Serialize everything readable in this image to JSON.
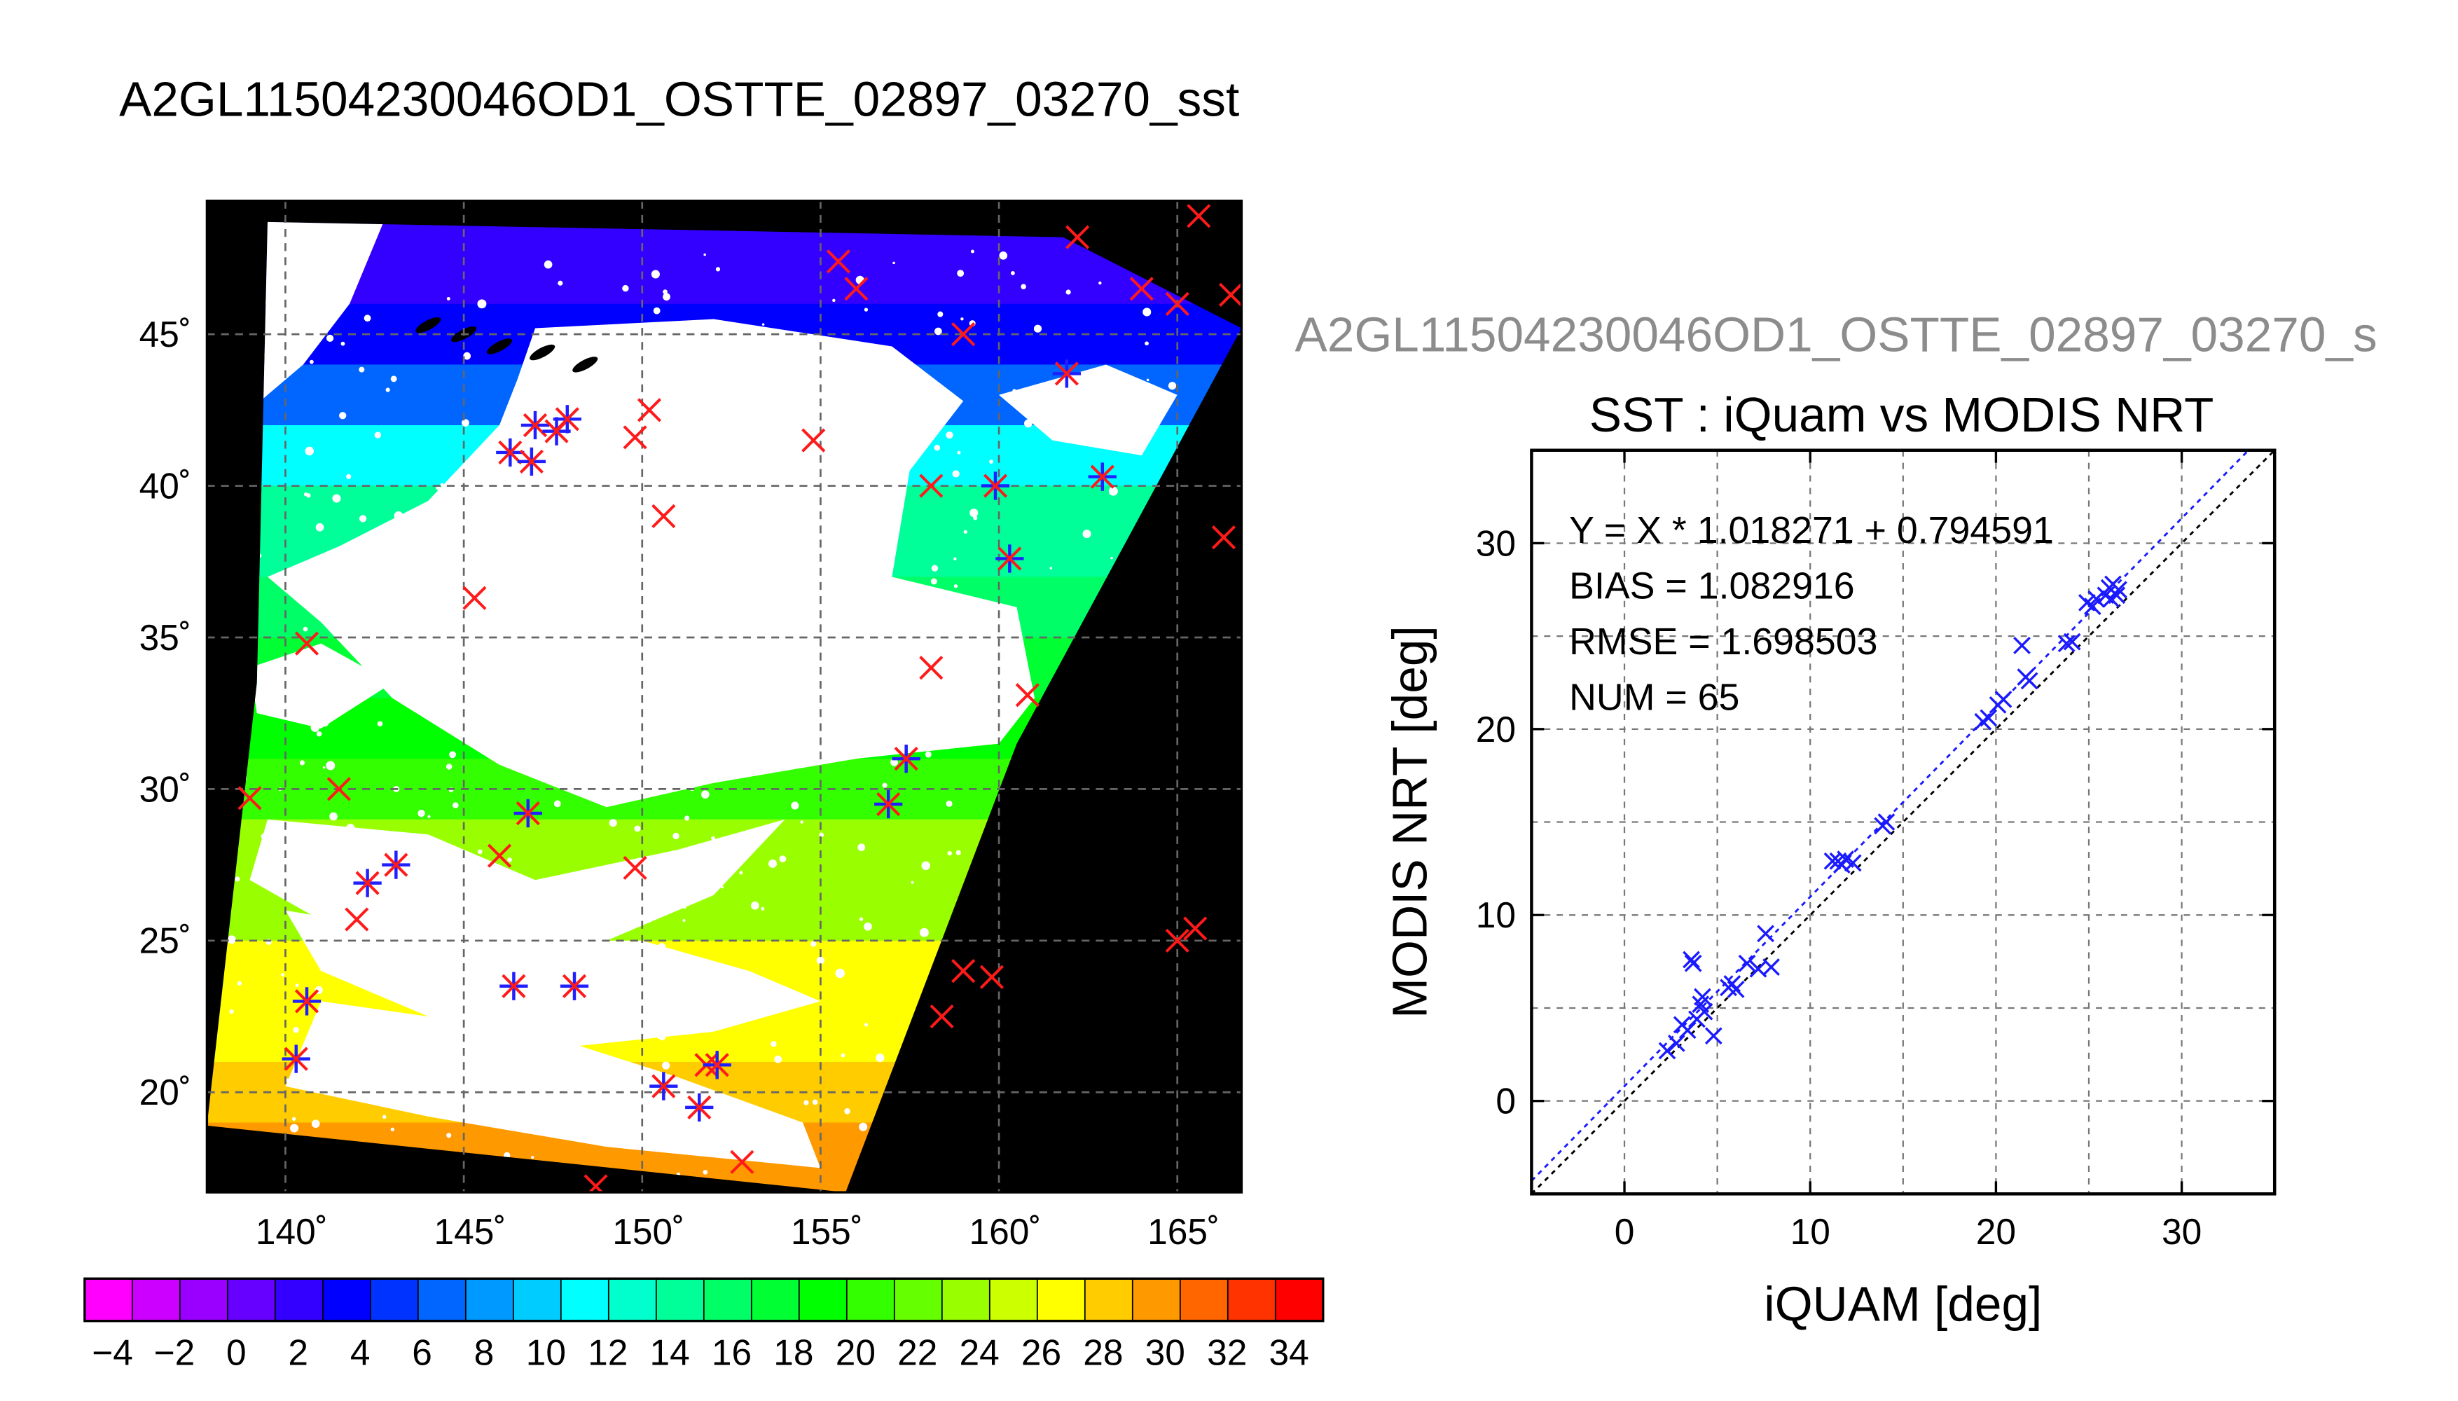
{
  "figure": {
    "map_title": "A2GL11504230046OD1_OSTTE_02897_03270_sst",
    "scatter_header": "A2GL11504230046OD1_OSTTE_02897_03270_s"
  },
  "chart_data": [
    {
      "type": "heatmap",
      "x_ticks": [
        "140˚",
        "145˚",
        "150˚",
        "155˚",
        "160˚",
        "165˚"
      ],
      "x_tick_values": [
        140,
        145,
        150,
        155,
        160,
        165
      ],
      "y_ticks": [
        "20˚",
        "25˚",
        "30˚",
        "35˚",
        "40˚",
        "45˚"
      ],
      "y_tick_values": [
        20,
        25,
        30,
        35,
        40,
        45
      ],
      "xlim": [
        137.8,
        166.8
      ],
      "ylim": [
        16.7,
        49.4
      ],
      "grid": true,
      "colorbar": {
        "ticks": [
          "-4",
          "-2",
          "0",
          "2",
          "4",
          "6",
          "8",
          "10",
          "12",
          "14",
          "16",
          "18",
          "20",
          "22",
          "24",
          "26",
          "28",
          "30",
          "32",
          "34"
        ],
        "range": [
          -5,
          35
        ],
        "colors": [
          "#ff00ff",
          "#cc00ff",
          "#9900ff",
          "#6600ff",
          "#3300ff",
          "#0000ff",
          "#0033ff",
          "#0066ff",
          "#0099ff",
          "#00ccff",
          "#00ffff",
          "#00ffcc",
          "#00ff99",
          "#00ff66",
          "#00ff33",
          "#00ff00",
          "#33ff00",
          "#66ff00",
          "#99ff00",
          "#ccff00",
          "#ffff00",
          "#ffcc00",
          "#ff9900",
          "#ff6600",
          "#ff3300",
          "#ff0000"
        ]
      },
      "buoy_markers": {
        "red_x": [
          [
            139.0,
            29.7
          ],
          [
            141.5,
            30.0
          ],
          [
            140.6,
            34.8
          ],
          [
            142.0,
            25.7
          ],
          [
            145.3,
            36.3
          ],
          [
            146.0,
            27.8
          ],
          [
            149.8,
            27.4
          ],
          [
            149.8,
            41.6
          ],
          [
            150.2,
            42.5
          ],
          [
            150.6,
            39.0
          ],
          [
            154.8,
            41.5
          ],
          [
            155.5,
            47.4
          ],
          [
            156.0,
            46.5
          ],
          [
            158.1,
            40.0
          ],
          [
            158.1,
            34.0
          ],
          [
            159.0,
            45.0
          ],
          [
            159.0,
            24.0
          ],
          [
            158.4,
            22.5
          ],
          [
            159.8,
            23.8
          ],
          [
            160.8,
            33.1
          ],
          [
            162.2,
            48.2
          ],
          [
            164.0,
            46.5
          ],
          [
            165.0,
            46.0
          ],
          [
            165.6,
            48.9
          ],
          [
            166.5,
            46.3
          ],
          [
            166.3,
            38.3
          ],
          [
            165.0,
            25.0
          ],
          [
            165.5,
            25.4
          ],
          [
            148.7,
            16.9
          ],
          [
            152.8,
            17.7
          ],
          [
            151.8,
            20.9
          ]
        ],
        "star_x": [
          [
            140.3,
            21.1
          ],
          [
            140.6,
            23.0
          ],
          [
            142.3,
            26.9
          ],
          [
            143.1,
            27.5
          ],
          [
            146.4,
            23.5
          ],
          [
            146.8,
            29.2
          ],
          [
            148.1,
            23.5
          ],
          [
            150.6,
            20.2
          ],
          [
            151.6,
            19.5
          ],
          [
            152.1,
            20.9
          ],
          [
            146.3,
            41.1
          ],
          [
            146.9,
            40.8
          ],
          [
            147.0,
            42.0
          ],
          [
            147.6,
            41.8
          ],
          [
            147.9,
            42.2
          ],
          [
            156.9,
            29.5
          ],
          [
            157.4,
            31.0
          ],
          [
            159.9,
            40.0
          ],
          [
            160.3,
            37.6
          ],
          [
            161.9,
            43.7
          ],
          [
            162.9,
            40.3
          ]
        ]
      }
    },
    {
      "type": "scatter",
      "title": "SST : iQuam vs MODIS NRT",
      "xlabel": "iQUAM [deg]",
      "ylabel": "MODIS NRT [deg]",
      "xlim": [
        -5,
        35
      ],
      "ylim": [
        -5,
        35
      ],
      "x_ticks": [
        "0",
        "10",
        "20",
        "30"
      ],
      "x_tick_values": [
        0,
        10,
        20,
        30
      ],
      "y_ticks": [
        "0",
        "10",
        "20",
        "30"
      ],
      "y_tick_values": [
        0,
        10,
        20,
        30
      ],
      "grid": true,
      "annotations": [
        "Y = X * 1.018271 + 0.794591",
        "BIAS = 1.082916",
        "RMSE = 1.698503",
        "NUM = 65"
      ],
      "fit": {
        "slope": 1.018271,
        "intercept": 0.794591
      },
      "points": [
        [
          2.3,
          2.7
        ],
        [
          2.8,
          3.1
        ],
        [
          3.1,
          4.1
        ],
        [
          3.4,
          3.8
        ],
        [
          3.6,
          7.6
        ],
        [
          3.7,
          7.4
        ],
        [
          3.9,
          4.4
        ],
        [
          4.1,
          5.2
        ],
        [
          4.2,
          5.6
        ],
        [
          4.3,
          4.8
        ],
        [
          4.8,
          3.5
        ],
        [
          5.6,
          6.1
        ],
        [
          5.8,
          6.3
        ],
        [
          6.0,
          6.0
        ],
        [
          6.6,
          7.4
        ],
        [
          7.2,
          7.1
        ],
        [
          7.6,
          9.0
        ],
        [
          7.9,
          7.2
        ],
        [
          11.2,
          12.9
        ],
        [
          11.5,
          12.9
        ],
        [
          11.7,
          12.7
        ],
        [
          11.9,
          13.0
        ],
        [
          12.3,
          12.8
        ],
        [
          13.9,
          14.8
        ],
        [
          14.1,
          15.0
        ],
        [
          19.3,
          20.4
        ],
        [
          19.6,
          20.6
        ],
        [
          20.1,
          21.3
        ],
        [
          20.4,
          21.6
        ],
        [
          21.4,
          24.5
        ],
        [
          21.6,
          22.8
        ],
        [
          21.8,
          22.6
        ],
        [
          23.8,
          24.6
        ],
        [
          24.1,
          24.7
        ],
        [
          24.9,
          26.8
        ],
        [
          25.2,
          26.6
        ],
        [
          25.4,
          27.0
        ],
        [
          25.9,
          27.2
        ],
        [
          26.1,
          27.6
        ],
        [
          26.3,
          27.8
        ],
        [
          26.5,
          27.2
        ],
        [
          26.6,
          27.5
        ],
        [
          26.2,
          27.0
        ]
      ]
    }
  ]
}
